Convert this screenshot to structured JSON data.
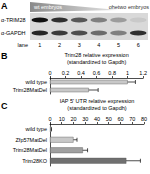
{
  "panel_a": {
    "panel_label": "A",
    "groups": [
      "wt embryos",
      "ohetwo embryos"
    ],
    "rows": [
      "α-TRIM28",
      "α-GAPDH"
    ],
    "lane_title": "lane",
    "lanes": [
      1,
      2,
      3,
      4,
      5,
      6
    ]
  },
  "chart_data": [
    {
      "type": "bar",
      "panel_label": "B",
      "orientation": "horizontal",
      "xlabel": "Trim28 relative expression",
      "xlabel_note": "(standardized to Gapdh)",
      "categories": [
        "wild type",
        "Trim28MatDel"
      ],
      "values": [
        1.0,
        0.5
      ],
      "errors": [
        0.1,
        0.12
      ],
      "colors": [
        "#c8c8c8",
        "#c8c8c8"
      ],
      "xlim": [
        0,
        1.2
      ],
      "xticks": [
        0,
        0.2,
        0.4,
        0.6,
        0.8,
        1,
        1.2
      ],
      "grid": false
    },
    {
      "type": "bar",
      "panel_label": "C",
      "orientation": "horizontal",
      "xlabel": "IAP 5' UTR relative expression",
      "xlabel_note": "(standardized to Gapdh)",
      "categories": [
        "wild type",
        "Zfp57MatDel",
        "Trim28MatDel",
        "Trim28KO"
      ],
      "values": [
        1,
        20,
        28,
        65
      ],
      "errors": [
        0.3,
        3,
        4,
        12
      ],
      "colors": [
        "#c8c8c8",
        "#c8c8c8",
        "#a0a0a0",
        "#707070"
      ],
      "xlim": [
        0,
        80
      ],
      "xticks": [
        0,
        10,
        20,
        30,
        40,
        50,
        60,
        70,
        80
      ],
      "grid": false
    }
  ]
}
